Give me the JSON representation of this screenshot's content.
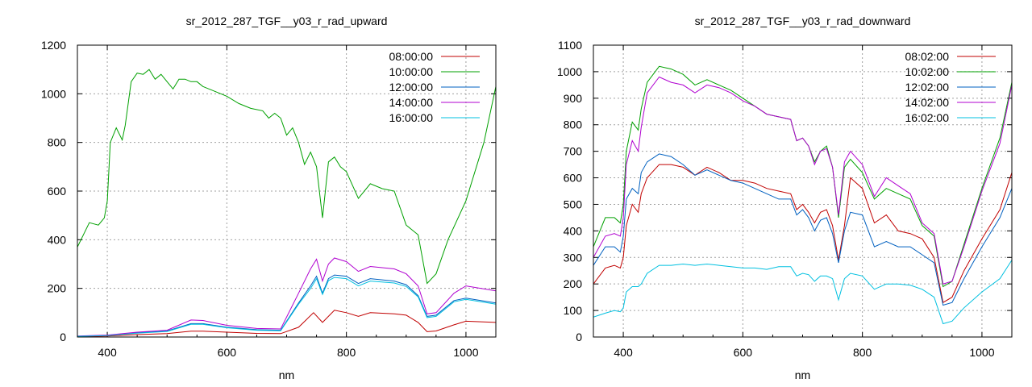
{
  "chart_data": [
    {
      "type": "line",
      "title": "sr_2012_287_TGF__y03_r_rad_upward",
      "xlabel": "nm",
      "ylabel": "",
      "xlim": [
        350,
        1050
      ],
      "ylim": [
        0,
        1200
      ],
      "x_ticks": [
        "400",
        "600",
        "800",
        "1000"
      ],
      "y_ticks": [
        "0",
        "200",
        "400",
        "600",
        "800",
        "1000",
        "1200"
      ],
      "grid": true,
      "legend_position": "top-right",
      "series": [
        {
          "name": "08:00:00",
          "color": "#c00000",
          "x": [
            350,
            400,
            450,
            500,
            540,
            560,
            600,
            650,
            690,
            720,
            745,
            760,
            780,
            800,
            820,
            840,
            880,
            900,
            920,
            935,
            950,
            980,
            1000,
            1050
          ],
          "y": [
            2,
            4,
            10,
            14,
            24,
            24,
            20,
            15,
            14,
            40,
            100,
            60,
            110,
            100,
            85,
            100,
            95,
            90,
            60,
            22,
            25,
            50,
            65,
            60
          ]
        },
        {
          "name": "10:00:00",
          "color": "#00a000",
          "x": [
            350,
            360,
            370,
            385,
            395,
            400,
            405,
            415,
            425,
            430,
            440,
            450,
            460,
            470,
            480,
            490,
            500,
            510,
            520,
            530,
            540,
            550,
            560,
            580,
            600,
            620,
            640,
            660,
            670,
            680,
            690,
            700,
            710,
            720,
            730,
            740,
            750,
            760,
            770,
            780,
            790,
            800,
            820,
            840,
            860,
            880,
            900,
            920,
            935,
            950,
            970,
            1000,
            1030,
            1050
          ],
          "y": [
            370,
            420,
            470,
            460,
            490,
            560,
            800,
            860,
            810,
            870,
            1050,
            1085,
            1080,
            1100,
            1060,
            1080,
            1050,
            1020,
            1060,
            1060,
            1050,
            1050,
            1030,
            1010,
            990,
            960,
            940,
            930,
            900,
            920,
            900,
            830,
            860,
            800,
            710,
            760,
            700,
            490,
            720,
            740,
            700,
            680,
            570,
            630,
            610,
            600,
            460,
            420,
            220,
            260,
            400,
            560,
            800,
            1030
          ]
        },
        {
          "name": "12:00:00",
          "color": "#0060c0",
          "x": [
            350,
            400,
            450,
            500,
            540,
            560,
            600,
            650,
            690,
            720,
            740,
            750,
            760,
            770,
            780,
            800,
            820,
            840,
            880,
            900,
            920,
            935,
            950,
            980,
            1000,
            1050
          ],
          "y": [
            3,
            7,
            18,
            25,
            55,
            55,
            40,
            30,
            28,
            140,
            210,
            250,
            180,
            240,
            255,
            250,
            220,
            240,
            230,
            215,
            170,
            85,
            90,
            150,
            160,
            140
          ]
        },
        {
          "name": "14:00:00",
          "color": "#b000d0",
          "x": [
            350,
            400,
            450,
            500,
            540,
            560,
            600,
            650,
            690,
            720,
            740,
            750,
            760,
            770,
            780,
            800,
            820,
            840,
            880,
            900,
            920,
            935,
            950,
            980,
            1000,
            1050
          ],
          "y": [
            4,
            8,
            20,
            28,
            70,
            68,
            48,
            35,
            33,
            180,
            280,
            320,
            230,
            300,
            325,
            310,
            270,
            290,
            280,
            260,
            210,
            95,
            100,
            180,
            210,
            190
          ]
        },
        {
          "name": "16:00:00",
          "color": "#00c0e0",
          "x": [
            350,
            400,
            450,
            500,
            540,
            560,
            600,
            650,
            690,
            720,
            740,
            750,
            760,
            770,
            780,
            800,
            820,
            840,
            880,
            900,
            920,
            935,
            950,
            980,
            1000,
            1050
          ],
          "y": [
            3,
            6,
            16,
            23,
            52,
            52,
            38,
            28,
            26,
            135,
            200,
            240,
            175,
            232,
            245,
            240,
            210,
            230,
            222,
            208,
            165,
            80,
            85,
            145,
            155,
            135
          ]
        }
      ]
    },
    {
      "type": "line",
      "title": "sr_2012_287_TGF__y03_r_rad_downward",
      "xlabel": "nm",
      "ylabel": "",
      "xlim": [
        350,
        1050
      ],
      "ylim": [
        0,
        1100
      ],
      "x_ticks": [
        "400",
        "600",
        "800",
        "1000"
      ],
      "y_ticks": [
        "0",
        "100",
        "200",
        "300",
        "400",
        "500",
        "600",
        "700",
        "800",
        "900",
        "1000",
        "1100"
      ],
      "grid": true,
      "legend_position": "top-right",
      "series": [
        {
          "name": "08:02:00",
          "color": "#c00000",
          "x": [
            350,
            370,
            385,
            395,
            400,
            405,
            415,
            425,
            430,
            440,
            460,
            480,
            500,
            520,
            540,
            560,
            580,
            600,
            620,
            640,
            660,
            680,
            690,
            700,
            710,
            720,
            730,
            740,
            750,
            760,
            770,
            780,
            800,
            820,
            840,
            860,
            880,
            900,
            920,
            935,
            950,
            970,
            1000,
            1030,
            1050
          ],
          "y": [
            200,
            260,
            270,
            260,
            300,
            420,
            500,
            470,
            540,
            600,
            650,
            650,
            640,
            610,
            640,
            620,
            590,
            590,
            580,
            560,
            550,
            540,
            480,
            500,
            470,
            430,
            470,
            480,
            420,
            290,
            420,
            600,
            560,
            430,
            460,
            400,
            390,
            370,
            300,
            130,
            150,
            250,
            370,
            480,
            620
          ]
        },
        {
          "name": "10:02:00",
          "color": "#00a000",
          "x": [
            350,
            370,
            385,
            395,
            400,
            405,
            415,
            425,
            430,
            440,
            460,
            480,
            500,
            520,
            540,
            560,
            580,
            600,
            620,
            640,
            660,
            680,
            690,
            700,
            710,
            720,
            730,
            740,
            750,
            760,
            770,
            780,
            800,
            820,
            840,
            860,
            880,
            900,
            920,
            935,
            950,
            970,
            1000,
            1030,
            1050
          ],
          "y": [
            340,
            450,
            450,
            430,
            500,
            700,
            810,
            780,
            860,
            960,
            1020,
            1010,
            990,
            950,
            970,
            950,
            930,
            900,
            870,
            840,
            830,
            820,
            740,
            750,
            720,
            660,
            700,
            720,
            640,
            450,
            640,
            670,
            620,
            520,
            560,
            540,
            520,
            420,
            380,
            190,
            210,
            350,
            560,
            750,
            960
          ]
        },
        {
          "name": "12:02:00",
          "color": "#0060c0",
          "x": [
            350,
            370,
            385,
            395,
            400,
            405,
            415,
            425,
            430,
            440,
            460,
            480,
            500,
            520,
            540,
            560,
            580,
            600,
            620,
            640,
            660,
            680,
            690,
            700,
            710,
            720,
            730,
            740,
            750,
            760,
            770,
            780,
            800,
            820,
            840,
            860,
            880,
            900,
            920,
            935,
            950,
            970,
            1000,
            1030,
            1050
          ],
          "y": [
            270,
            340,
            340,
            320,
            380,
            520,
            560,
            540,
            620,
            660,
            690,
            680,
            650,
            610,
            630,
            610,
            590,
            580,
            560,
            540,
            520,
            520,
            460,
            480,
            450,
            400,
            440,
            450,
            390,
            280,
            400,
            470,
            460,
            340,
            360,
            340,
            340,
            310,
            280,
            120,
            130,
            220,
            340,
            450,
            560
          ]
        },
        {
          "name": "14:02:00",
          "color": "#b000d0",
          "x": [
            350,
            370,
            385,
            395,
            400,
            405,
            415,
            425,
            430,
            440,
            460,
            480,
            500,
            520,
            540,
            560,
            580,
            600,
            620,
            640,
            660,
            680,
            690,
            700,
            710,
            720,
            730,
            740,
            750,
            760,
            770,
            780,
            800,
            820,
            840,
            860,
            880,
            900,
            920,
            935,
            950,
            970,
            1000,
            1030,
            1050
          ],
          "y": [
            300,
            380,
            390,
            380,
            450,
            650,
            740,
            700,
            790,
            920,
            980,
            960,
            950,
            920,
            950,
            940,
            920,
            890,
            870,
            840,
            830,
            820,
            740,
            750,
            720,
            650,
            700,
            710,
            640,
            460,
            660,
            700,
            650,
            530,
            600,
            570,
            540,
            430,
            390,
            200,
            210,
            340,
            550,
            730,
            950
          ]
        },
        {
          "name": "16:02:00",
          "color": "#00c0e0",
          "x": [
            350,
            370,
            385,
            395,
            400,
            405,
            415,
            425,
            430,
            440,
            460,
            480,
            500,
            520,
            540,
            560,
            580,
            600,
            620,
            640,
            660,
            680,
            690,
            700,
            710,
            720,
            730,
            740,
            750,
            760,
            770,
            780,
            800,
            820,
            840,
            860,
            880,
            900,
            920,
            935,
            950,
            970,
            1000,
            1030,
            1050
          ],
          "y": [
            75,
            90,
            100,
            95,
            110,
            170,
            190,
            190,
            200,
            240,
            270,
            270,
            275,
            270,
            275,
            270,
            265,
            260,
            260,
            255,
            265,
            265,
            230,
            240,
            235,
            210,
            230,
            230,
            220,
            140,
            220,
            240,
            230,
            180,
            200,
            200,
            195,
            180,
            150,
            50,
            60,
            110,
            170,
            220,
            290
          ]
        }
      ]
    }
  ]
}
